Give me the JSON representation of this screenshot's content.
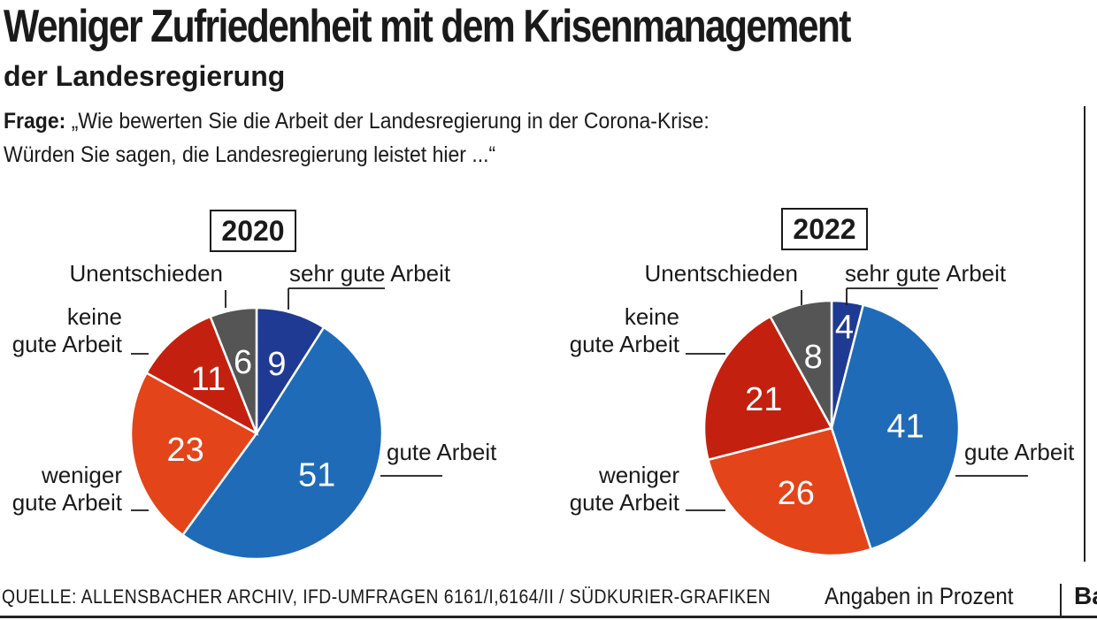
{
  "title": "Weniger Zufriedenheit mit dem Krisenmanagement",
  "subtitle": "der Landesregierung",
  "question": {
    "label": "Frage:",
    "line1": "„Wie bewerten Sie die Arbeit der Landesregierung in der Corona-Krise:",
    "line2": "Würden Sie sagen, die Landesregierung leistet hier ...“"
  },
  "footer": {
    "source": "QUELLE: ALLENSBACHER ARCHIV, IFD-UMFRAGEN 6161/I,6164/II / SÜDKURIER-GRAFIKEN",
    "unit": "Angaben in Prozent",
    "edge_text": "Ba"
  },
  "colors": {
    "sehr_gute_arbeit": "#1f3a93",
    "gute_arbeit": "#1f6bb8",
    "weniger_gute_arbeit": "#e3441a",
    "keine_gute_arbeit": "#c4200f",
    "unentschieden": "#555555"
  },
  "chart_data": [
    {
      "type": "pie",
      "title": "2020",
      "categories": [
        "sehr gute Arbeit",
        "gute Arbeit",
        "weniger gute Arbeit",
        "keine gute Arbeit",
        "Unentschieden"
      ],
      "values": [
        9,
        51,
        23,
        11,
        6
      ]
    },
    {
      "type": "pie",
      "title": "2022",
      "categories": [
        "sehr gute Arbeit",
        "gute Arbeit",
        "weniger gute Arbeit",
        "keine gute Arbeit",
        "Unentschieden"
      ],
      "values": [
        4,
        41,
        26,
        21,
        8
      ]
    }
  ]
}
